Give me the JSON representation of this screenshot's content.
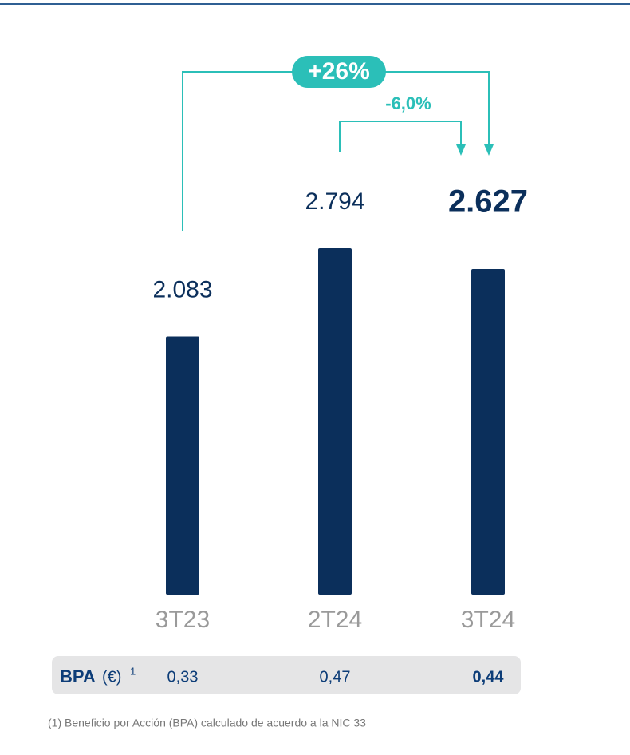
{
  "chart_data": {
    "type": "bar",
    "categories": [
      "3T23",
      "2T24",
      "3T24"
    ],
    "values": [
      2083,
      2794,
      2627
    ],
    "value_labels": [
      "2.083",
      "2.794",
      "2.627"
    ],
    "color": "#0b2f5b",
    "annotations": [
      "+26%",
      "-6,0%"
    ],
    "annotation_color": "#2bbfb8"
  },
  "table": {
    "label": "BPA",
    "unit": "(€)",
    "note_ref": "1",
    "values": [
      "0,33",
      "0,47",
      "0,44"
    ]
  },
  "footnote": "(1) Beneficio por Acción (BPA) calculado de acuerdo a la NIC 33"
}
